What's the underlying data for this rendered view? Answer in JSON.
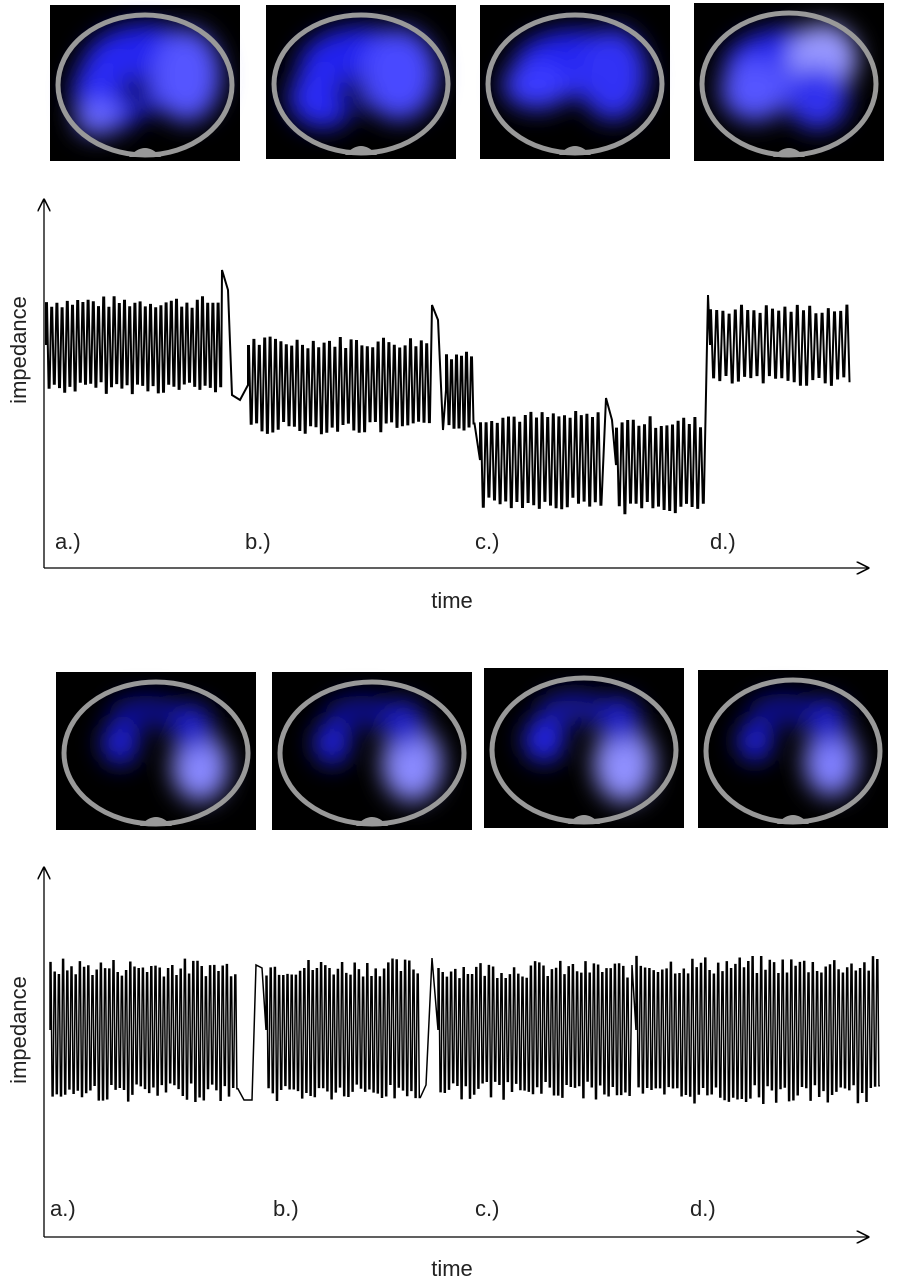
{
  "panels": [
    {
      "y_label": "impedance",
      "x_label": "time",
      "phase_labels": [
        "a.)",
        "b.)",
        "c.)",
        "d.)"
      ]
    },
    {
      "y_label": "impedance",
      "x_label": "time",
      "phase_labels": [
        "a.)",
        "b.)",
        "c.)",
        "d.)"
      ]
    }
  ]
}
